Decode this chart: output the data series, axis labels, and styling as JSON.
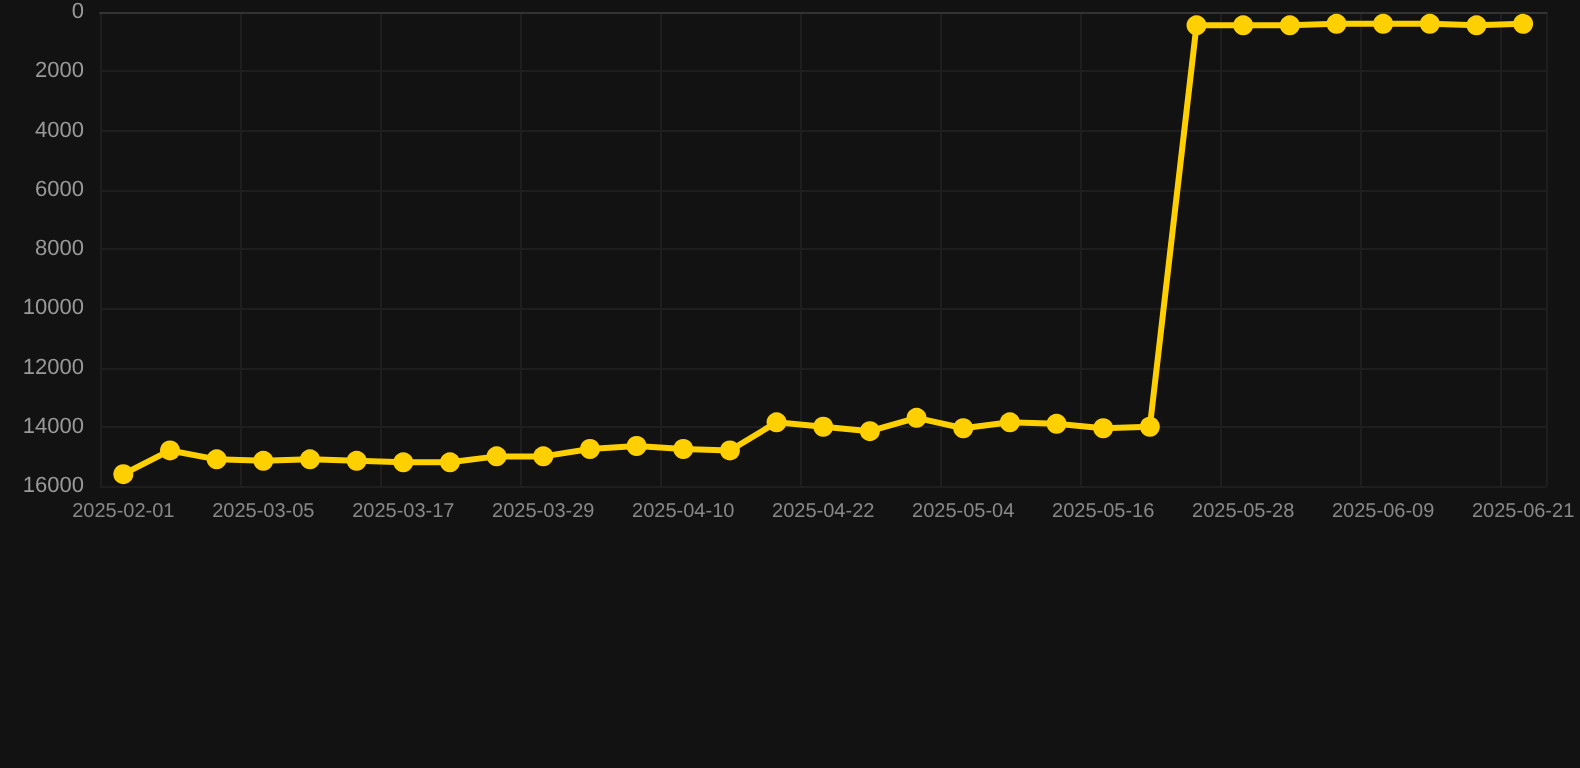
{
  "chart_data": {
    "type": "line",
    "categories": [
      "2025-02-01",
      null,
      null,
      "2025-03-05",
      null,
      null,
      "2025-03-17",
      null,
      null,
      "2025-03-29",
      null,
      null,
      "2025-04-10",
      null,
      null,
      "2025-04-22",
      null,
      null,
      "2025-05-04",
      null,
      null,
      "2025-05-16",
      null,
      null,
      "2025-05-28",
      null,
      null,
      "2025-06-09",
      null,
      null,
      "2025-06-21"
    ],
    "series": [
      {
        "color": "#ffd000",
        "values": [
          15600,
          14800,
          15100,
          15150,
          15100,
          15150,
          15200,
          15200,
          15000,
          15000,
          14750,
          14650,
          14750,
          14800,
          13850,
          14000,
          14150,
          13700,
          14050,
          13850,
          13900,
          14050,
          14000,
          450,
          450,
          450,
          400,
          400,
          400,
          450,
          400
        ]
      }
    ],
    "ylim": [
      16000,
      0
    ],
    "yticks": [
      0,
      2000,
      4000,
      6000,
      8000,
      10000,
      12000,
      14000,
      16000
    ],
    "grid": true,
    "marker": "circle",
    "line_style": "solid"
  }
}
